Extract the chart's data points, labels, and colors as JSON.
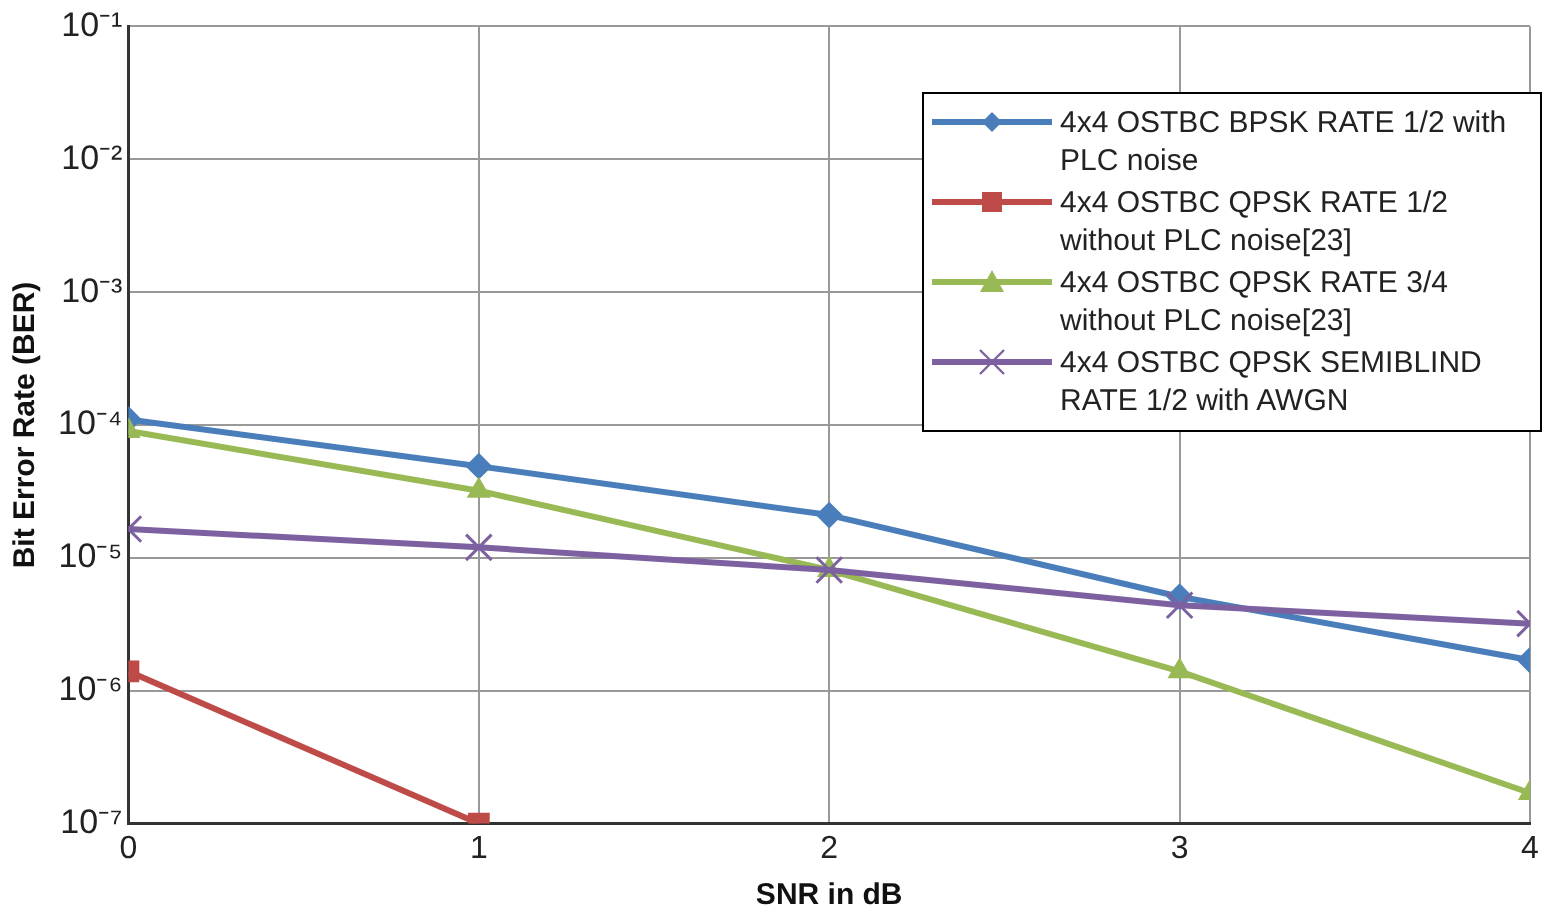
{
  "chart_data": {
    "type": "line",
    "xlabel": "SNR in dB",
    "ylabel": "Bit Error Rate (BER)",
    "x": [
      0,
      1,
      2,
      3,
      4
    ],
    "series": [
      {
        "name": "4x4 OSTBC BPSK RATE 1/2 with PLC noise",
        "color": "#4a7ebb",
        "marker": "diamond",
        "values": [
          0.00011,
          4.9e-05,
          2.1e-05,
          5.1e-06,
          1.7e-06
        ]
      },
      {
        "name": "4x4 OSTBC QPSK RATE 1/2 without PLC noise[23]",
        "color": "#be4b48",
        "marker": "square",
        "values": [
          1.4e-06,
          1e-07,
          null,
          null,
          null
        ]
      },
      {
        "name": "4x4 OSTBC QPSK RATE 3/4 without PLC noise[23]",
        "color": "#98b954",
        "marker": "triangle",
        "values": [
          9e-05,
          3.2e-05,
          8.1e-06,
          1.4e-06,
          1.7e-07
        ]
      },
      {
        "name": "4x4 OSTBC QPSK SEMIBLIND RATE 1/2 with AWGN",
        "color": "#7d60a0",
        "marker": "cross",
        "values": [
          1.65e-05,
          1.2e-05,
          8.1e-06,
          4.4e-06,
          3.2e-06
        ]
      }
    ],
    "log": "y",
    "xlim": [
      0,
      4
    ],
    "xticks": [
      0,
      1,
      2,
      3,
      4
    ],
    "ylim": [
      1e-07,
      0.1
    ],
    "yticks": [
      {
        "value": 1e-07,
        "label": "10⁻⁷"
      },
      {
        "value": 1e-06,
        "label": "10⁻⁶"
      },
      {
        "value": 1e-05,
        "label": "10⁻⁵"
      },
      {
        "value": 0.0001,
        "label": "10⁻⁴"
      },
      {
        "value": 0.001,
        "label": "10⁻³"
      },
      {
        "value": 0.01,
        "label": "10⁻²"
      },
      {
        "value": 0.1,
        "label": "10⁻¹"
      }
    ],
    "grid": true,
    "legend": "top right",
    "line_style": "solid"
  }
}
